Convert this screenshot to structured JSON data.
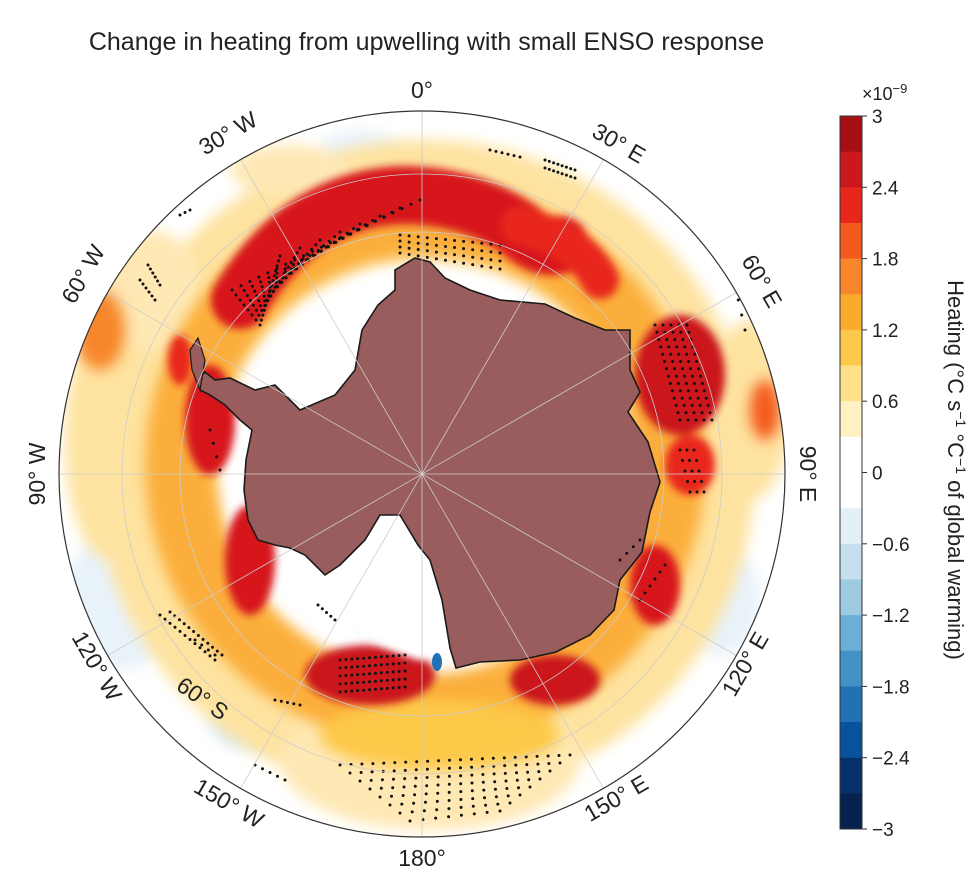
{
  "title": "Change in heating from upwelling with small ENSO response",
  "map": {
    "projection": "south polar stereographic",
    "longitude_labels": [
      "0°",
      "30° E",
      "60° E",
      "90° E",
      "120° E",
      "150° E",
      "180°",
      "150° W",
      "120° W",
      "90° W",
      "60° W",
      "30° W"
    ],
    "latitude_label": "60° S",
    "land_color": "#9a5d5d",
    "stipple_meaning": "significant"
  },
  "colorbar": {
    "title_parts": [
      "Heating (°C s",
      "−1",
      " °C",
      "−1",
      " of global warming)"
    ],
    "scale_base": "×10",
    "scale_exp": "−9",
    "tick_labels": [
      "3",
      "2.4",
      "1.8",
      "1.2",
      "0.6",
      "0",
      "−0.6",
      "−1.2",
      "−1.8",
      "−2.4",
      "−3"
    ],
    "colors": [
      "#a50f15",
      "#cb181d",
      "#e8261c",
      "#f45a1e",
      "#f8862a",
      "#fbab2c",
      "#fdc94a",
      "#fee18a",
      "#fff1c4",
      "#ffffff",
      "#ffffff",
      "#e4f0f8",
      "#c6dfef",
      "#9ecae1",
      "#6baed6",
      "#4292c6",
      "#2171b5",
      "#08519c",
      "#08306b",
      "#06224f"
    ]
  }
}
